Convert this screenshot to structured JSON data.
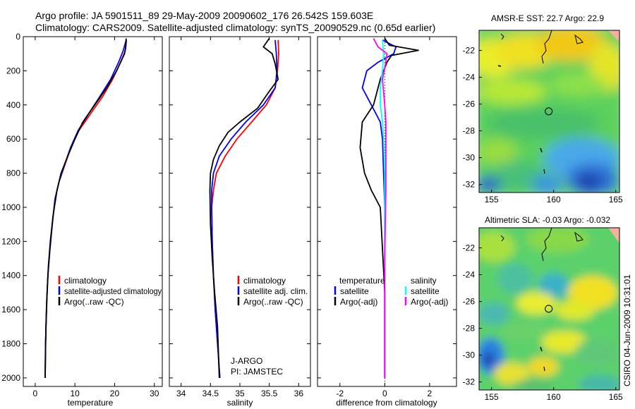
{
  "header": {
    "line1": "Argo profile: JA 5901511_89 29-May-2009 20090602_176 26.542S 159.603E",
    "line2": "Climatology: CARS2009. Satellite-adjusted climatology: synTS_20090529.nc (0.65d earlier)"
  },
  "stamp": "CSIRO 04-Jun-2009 10:31:01",
  "colors": {
    "climatology": "#ff0000",
    "satellite": "#0000ff",
    "argo": "#000000",
    "sat_diff": "#00ffff",
    "sal_argo": "#ff00ff"
  },
  "chart_data": [
    {
      "type": "line",
      "name": "temperature-profile",
      "xlabel": "temperature",
      "ylabel": "",
      "xlim": [
        -3,
        32
      ],
      "ylim": [
        2050,
        0
      ],
      "y_reversed": true,
      "xticks": [
        0,
        10,
        20,
        30
      ],
      "yticks": [
        0,
        200,
        400,
        600,
        800,
        1000,
        1200,
        1400,
        1600,
        1800,
        2000
      ],
      "legend": {
        "position": "lower-right",
        "entries": [
          "climatology",
          "satellite-adjusted climatology",
          "Argo(..raw -QC)"
        ]
      },
      "series": [
        {
          "name": "climatology",
          "color": "#ff0000",
          "x": [
            23.0,
            22.7,
            21.5,
            19.5,
            17.0,
            14.0,
            11.0,
            9.0,
            7.5,
            6.0,
            5.0,
            4.3,
            3.7,
            3.2,
            2.9,
            2.7,
            2.6,
            2.5
          ],
          "y": [
            20,
            80,
            150,
            250,
            350,
            450,
            550,
            650,
            750,
            850,
            950,
            1100,
            1250,
            1400,
            1550,
            1700,
            1850,
            2000
          ]
        },
        {
          "name": "satellite-adjusted climatology",
          "color": "#0000ff",
          "x": [
            22.9,
            22.2,
            21.0,
            19.0,
            16.3,
            13.5,
            10.8,
            8.9,
            7.4,
            6.0,
            5.0,
            4.3,
            3.7,
            3.2,
            2.9,
            2.7,
            2.6,
            2.5
          ],
          "y": [
            20,
            80,
            150,
            250,
            350,
            450,
            550,
            650,
            750,
            850,
            950,
            1100,
            1250,
            1400,
            1550,
            1700,
            1850,
            2000
          ]
        },
        {
          "name": "Argo(..raw -QC)",
          "color": "#000000",
          "x": [
            22.9,
            22.8,
            22.5,
            20.5,
            18.0,
            15.0,
            12.0,
            10.0,
            8.2,
            6.5,
            5.5,
            4.5,
            3.8,
            3.3,
            3.0,
            2.8,
            2.6,
            2.5
          ],
          "y": [
            10,
            60,
            100,
            200,
            300,
            400,
            500,
            600,
            700,
            800,
            900,
            1050,
            1200,
            1350,
            1500,
            1650,
            1800,
            2000
          ]
        }
      ]
    },
    {
      "type": "line",
      "name": "salinity-profile",
      "xlabel": "salinity",
      "ylabel": "",
      "xlim": [
        33.8,
        36.2
      ],
      "ylim": [
        2050,
        0
      ],
      "y_reversed": true,
      "xticks": [
        34,
        34.5,
        35,
        35.5,
        36
      ],
      "legend": {
        "position": "lower-right",
        "entries": [
          "climatology",
          "satellite adj. clim.",
          "Argo(..raw -QC)"
        ]
      },
      "annotation": [
        "J-ARGO",
        "PI: JAMSTEC"
      ],
      "series": [
        {
          "name": "climatology",
          "color": "#ff0000",
          "x": [
            35.65,
            35.66,
            35.64,
            35.6,
            35.45,
            35.2,
            34.95,
            34.75,
            34.6,
            34.55,
            34.52,
            34.53,
            34.55,
            34.58,
            34.61,
            34.63,
            34.65,
            34.66
          ],
          "y": [
            20,
            100,
            200,
            300,
            400,
            500,
            600,
            700,
            800,
            900,
            1000,
            1200,
            1400,
            1600,
            1750,
            1850,
            1950,
            2000
          ]
        },
        {
          "name": "satellite adj. clim.",
          "color": "#0000ff",
          "x": [
            35.6,
            35.62,
            35.63,
            35.6,
            35.4,
            35.1,
            34.85,
            34.65,
            34.55,
            34.52,
            34.52,
            34.53,
            34.55,
            34.58,
            34.61,
            34.63,
            34.65,
            34.66
          ],
          "y": [
            20,
            100,
            200,
            300,
            400,
            500,
            600,
            700,
            800,
            900,
            1000,
            1200,
            1400,
            1600,
            1750,
            1850,
            1950,
            2000
          ]
        },
        {
          "name": "Argo(..raw -QC)",
          "color": "#000000",
          "x": [
            35.5,
            35.4,
            35.55,
            35.6,
            35.65,
            35.5,
            35.3,
            35.0,
            34.8,
            34.65,
            34.55,
            34.5,
            34.49,
            34.5,
            34.53,
            34.57,
            34.62,
            34.65
          ],
          "y": [
            10,
            60,
            100,
            160,
            250,
            320,
            420,
            500,
            560,
            640,
            720,
            800,
            900,
            1100,
            1300,
            1500,
            1700,
            2000
          ]
        }
      ]
    },
    {
      "type": "line",
      "name": "difference-profile",
      "xlabel": "difference from climatology",
      "ylabel": "",
      "xlim": [
        -3,
        3.2
      ],
      "ylim": [
        2050,
        0
      ],
      "y_reversed": true,
      "xticks": [
        -2,
        0,
        2
      ],
      "legend": {
        "position": "lower-right",
        "columns": [
          {
            "heading": "temperature",
            "entries": [
              "satellite",
              "Argo(-adj)"
            ]
          },
          {
            "heading": "salinity",
            "entries": [
              "satellite",
              "Argo(-adj)"
            ]
          }
        ]
      },
      "series": [
        {
          "name": "temperature satellite",
          "color": "#0000ff",
          "x": [
            -0.1,
            0.5,
            0.4,
            -0.3,
            -0.8,
            -1.0,
            -0.6,
            -0.2,
            -0.1,
            -0.05,
            0,
            0,
            0
          ],
          "y": [
            20,
            60,
            100,
            150,
            200,
            300,
            400,
            500,
            600,
            800,
            1000,
            1500,
            2000
          ]
        },
        {
          "name": "temperature Argo(-adj)",
          "color": "#000000",
          "x": [
            0.0,
            0.2,
            1.5,
            0.3,
            0.1,
            -0.2,
            -0.5,
            -1.0,
            -1.1,
            -0.9,
            -0.6,
            -0.2,
            0,
            0
          ],
          "y": [
            10,
            50,
            80,
            110,
            150,
            250,
            400,
            500,
            650,
            800,
            900,
            1000,
            1500,
            2000
          ]
        },
        {
          "name": "salinity satellite",
          "color": "#00ffff",
          "x": [
            -0.1,
            -0.05,
            -0.1,
            -0.2,
            -0.2,
            -0.1,
            -0.05,
            0,
            0,
            0
          ],
          "y": [
            20,
            100,
            200,
            300,
            400,
            500,
            600,
            800,
            1000,
            2000
          ]
        },
        {
          "name": "salinity Argo(-adj)",
          "color": "#ff00ff",
          "x": [
            -0.5,
            -0.3,
            0.1,
            0.05,
            -0.1,
            0.0,
            0.05,
            0.05,
            0.05,
            0.0,
            0.0
          ],
          "y": [
            10,
            60,
            100,
            150,
            250,
            400,
            500,
            700,
            900,
            1300,
            2000
          ]
        }
      ]
    },
    {
      "type": "heatmap",
      "name": "sst-map",
      "title": "AMSR-E SST: 22.7 Argo: 22.9",
      "xlim": [
        154.0,
        165.3
      ],
      "ylim": [
        -32.6,
        -20.5
      ],
      "xticks": [
        155,
        160,
        165
      ],
      "yticks": [
        -22,
        -24,
        -26,
        -28,
        -30,
        -32
      ],
      "marker": {
        "lon": 159.603,
        "lat": -26.542
      }
    },
    {
      "type": "heatmap",
      "name": "sla-map",
      "title": "Altimetric SLA: -0.03 Argo: -0.032",
      "xlim": [
        154.0,
        165.3
      ],
      "ylim": [
        -32.6,
        -20.5
      ],
      "xticks": [
        155,
        160,
        165
      ],
      "yticks": [
        -22,
        -24,
        -26,
        -28,
        -30,
        -32
      ],
      "marker": {
        "lon": 159.603,
        "lat": -26.542
      }
    }
  ]
}
